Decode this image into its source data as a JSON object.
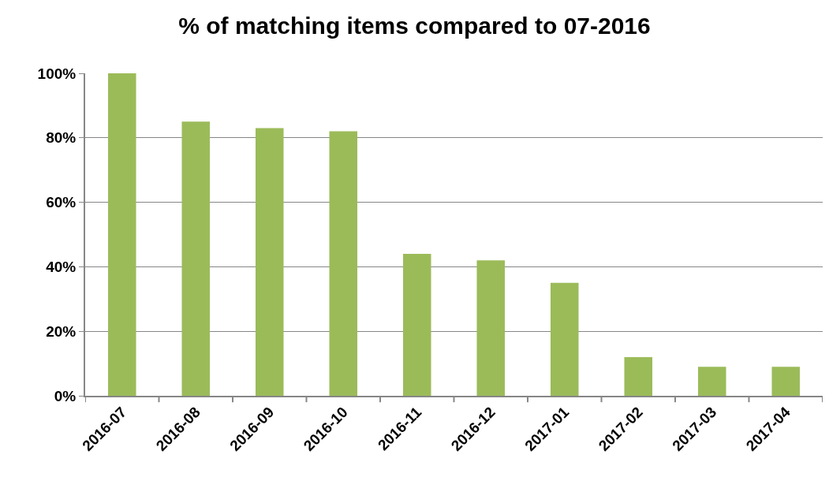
{
  "chart_data": {
    "type": "bar",
    "title": "% of matching items compared to 07-2016",
    "categories": [
      "2016-07",
      "2016-08",
      "2016-09",
      "2016-10",
      "2016-11",
      "2016-12",
      "2017-01",
      "2017-02",
      "2017-03",
      "2017-04"
    ],
    "values": [
      100,
      85,
      83,
      82,
      44,
      42,
      35,
      12,
      9,
      9
    ],
    "color": "#9bbb59",
    "ylim": [
      0,
      100
    ],
    "yticks": [
      {
        "value": 0,
        "label": "0%"
      },
      {
        "value": 20,
        "label": "20%"
      },
      {
        "value": 40,
        "label": "40%"
      },
      {
        "value": 60,
        "label": "60%"
      },
      {
        "value": 80,
        "label": "80%"
      },
      {
        "value": 100,
        "label": "100%"
      }
    ],
    "grid": "y"
  }
}
